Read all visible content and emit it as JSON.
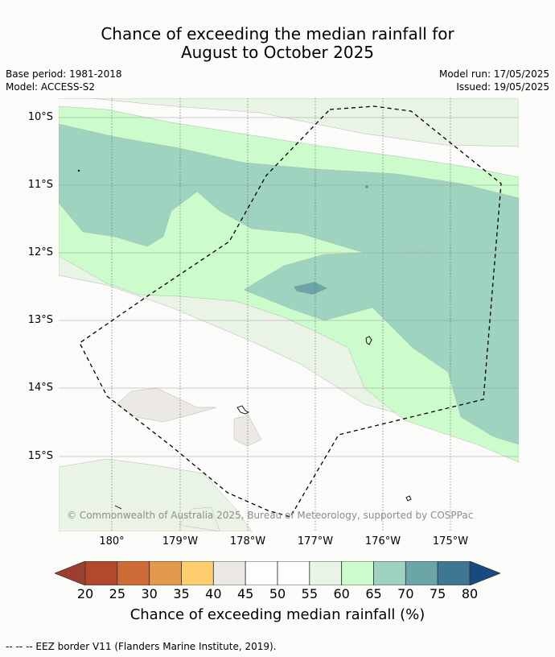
{
  "title_line1": "Chance of exceeding the median rainfall for",
  "title_line2": "August to October 2025",
  "meta": {
    "base_period": "Base period: 1981-2018",
    "model": "Model: ACCESS-S2",
    "model_run": "Model run: 17/05/2025",
    "issued": "Issued: 19/05/2025"
  },
  "map": {
    "lat_labels": [
      "10°S",
      "11°S",
      "12°S",
      "13°S",
      "14°S",
      "15°S"
    ],
    "lon_labels": [
      "180°",
      "179°W",
      "178°W",
      "177°W",
      "176°W",
      "175°W"
    ],
    "copyright": "© Commonwealth of Australia 2025, Bureau of Meteorology, supported by COSPPac",
    "colors": {
      "background": "#fbfcfa",
      "c50_55": "#fdfdfb",
      "c55_60": "#eaf4e6",
      "c60_65": "#ccfccc",
      "c65_70": "#9ed3bf",
      "c70_75": "#6ba5a7",
      "c40_45": "#ece9e4"
    }
  },
  "colorbar": {
    "ticks": [
      "20",
      "25",
      "30",
      "35",
      "40",
      "45",
      "50",
      "55",
      "60",
      "65",
      "70",
      "75",
      "80"
    ],
    "colors": [
      "#b2482c",
      "#cd6b38",
      "#e39a4c",
      "#fece6e",
      "#ece9e4",
      "#fdfdfb",
      "#fdfdfb",
      "#eaf4e6",
      "#ccfccc",
      "#9ed3bf",
      "#6ba5a7",
      "#3f7793"
    ],
    "low_extend_color": "#9d3f2f",
    "high_extend_color": "#164a80",
    "label": "Chance of exceeding median rainfall (%)"
  },
  "footnote": "--  --  -- EEZ border V11 (Flanders Marine Institute, 2019)."
}
